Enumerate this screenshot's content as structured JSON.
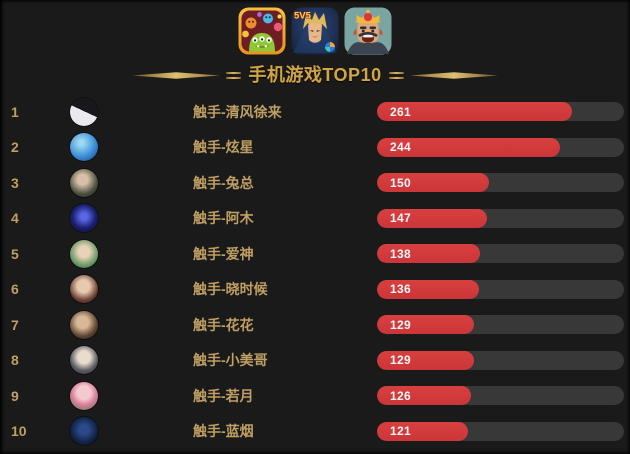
{
  "header": {
    "title": "手机游戏TOP10",
    "hok_badge": "5V5",
    "icons": [
      {
        "name": "battle-of-balls-icon",
        "game": "球球大作战"
      },
      {
        "name": "honor-of-kings-icon",
        "game": "王者荣耀",
        "badge": "5V5"
      },
      {
        "name": "clash-royale-icon",
        "game": "皇室战争"
      }
    ]
  },
  "colors": {
    "background": "#1a1a1a",
    "title_gold": "#d2a544",
    "text_gold": "#bf9f63",
    "bar_red": "#d23a3c",
    "bar_track": "#383838",
    "value_text": "#f7f7f7"
  },
  "chart_data": {
    "type": "bar",
    "orientation": "horizontal",
    "title": "手机游戏TOP10",
    "categories": [
      "触手-清风徐来",
      "触手-炫星",
      "触手-兔总",
      "触手-阿木",
      "触手-爱神",
      "触手-晓时候",
      "触手-花花",
      "触手-小美哥",
      "触手-若月",
      "触手-蓝烟"
    ],
    "values": [
      261,
      244,
      150,
      147,
      138,
      136,
      129,
      129,
      126,
      121
    ],
    "ranks": [
      1,
      2,
      3,
      4,
      5,
      6,
      7,
      8,
      9,
      10
    ],
    "xlim": [
      0,
      330
    ],
    "grid": false,
    "legend": "none",
    "value_labels_shown": true,
    "bar_color": "#d23a3c",
    "track_color": "#383838"
  },
  "rows": [
    {
      "rank": "1",
      "name": "触手-清风徐来",
      "value": "261",
      "avatar": "portrait-black-white",
      "avatar_css": "linear-gradient(205deg,#17171c 48%,#e9e9ee 48%)"
    },
    {
      "rank": "2",
      "name": "触手-炫星",
      "value": "244",
      "avatar": "blue-bubble",
      "avatar_css": "radial-gradient(circle at 40% 35%, #9fdcf4 8%, #3f8fd8 55%, #123a78 100%)"
    },
    {
      "rank": "3",
      "name": "触手-兔总",
      "value": "150",
      "avatar": "portrait-green-jacket",
      "avatar_css": "radial-gradient(circle at 45% 38%, #d8c0a8 22%, #4a4f3f 62%, #23251d 100%)"
    },
    {
      "rank": "4",
      "name": "触手-阿木",
      "value": "147",
      "avatar": "galaxy-blue",
      "avatar_css": "radial-gradient(circle at 50% 45%, #5a68e8 15%, #1b2070 55%, #0a0c2a 100%)"
    },
    {
      "rank": "5",
      "name": "触手-爱神",
      "value": "138",
      "avatar": "boy-outdoors",
      "avatar_css": "radial-gradient(circle at 50% 42%, #e8d2b8 26%, #6f9b6a 62%, #35563c 100%)"
    },
    {
      "rank": "6",
      "name": "触手-晓时候",
      "value": "136",
      "avatar": "woman-warm-portrait",
      "avatar_css": "radial-gradient(circle at 48% 40%, #e6c9ae 28%, #6b3f33 64%, #2d1a16 100%)"
    },
    {
      "rank": "7",
      "name": "触手-花花",
      "value": "129",
      "avatar": "person-with-cat",
      "avatar_css": "radial-gradient(circle at 45% 40%, #d9b898 26%, #5c4532 62%, #241a12 100%)"
    },
    {
      "rank": "8",
      "name": "触手-小美哥",
      "value": "129",
      "avatar": "anime-boy-gray",
      "avatar_css": "radial-gradient(circle at 50% 40%, #e9dccd 28%, #5a5a62 62%, #2a2a30 100%)"
    },
    {
      "rank": "9",
      "name": "触手-若月",
      "value": "126",
      "avatar": "anime-girl-pink",
      "avatar_css": "radial-gradient(circle at 50% 38%, #f5c9d0 30%, #d87f9a 55%, #4f7a4a 100%)"
    },
    {
      "rank": "10",
      "name": "触手-蓝烟",
      "value": "121",
      "avatar": "dark-blue-logo",
      "avatar_css": "radial-gradient(circle at 50% 45%, #2b4a8a 22%, #122448 60%, #070d1e 100%)"
    }
  ]
}
